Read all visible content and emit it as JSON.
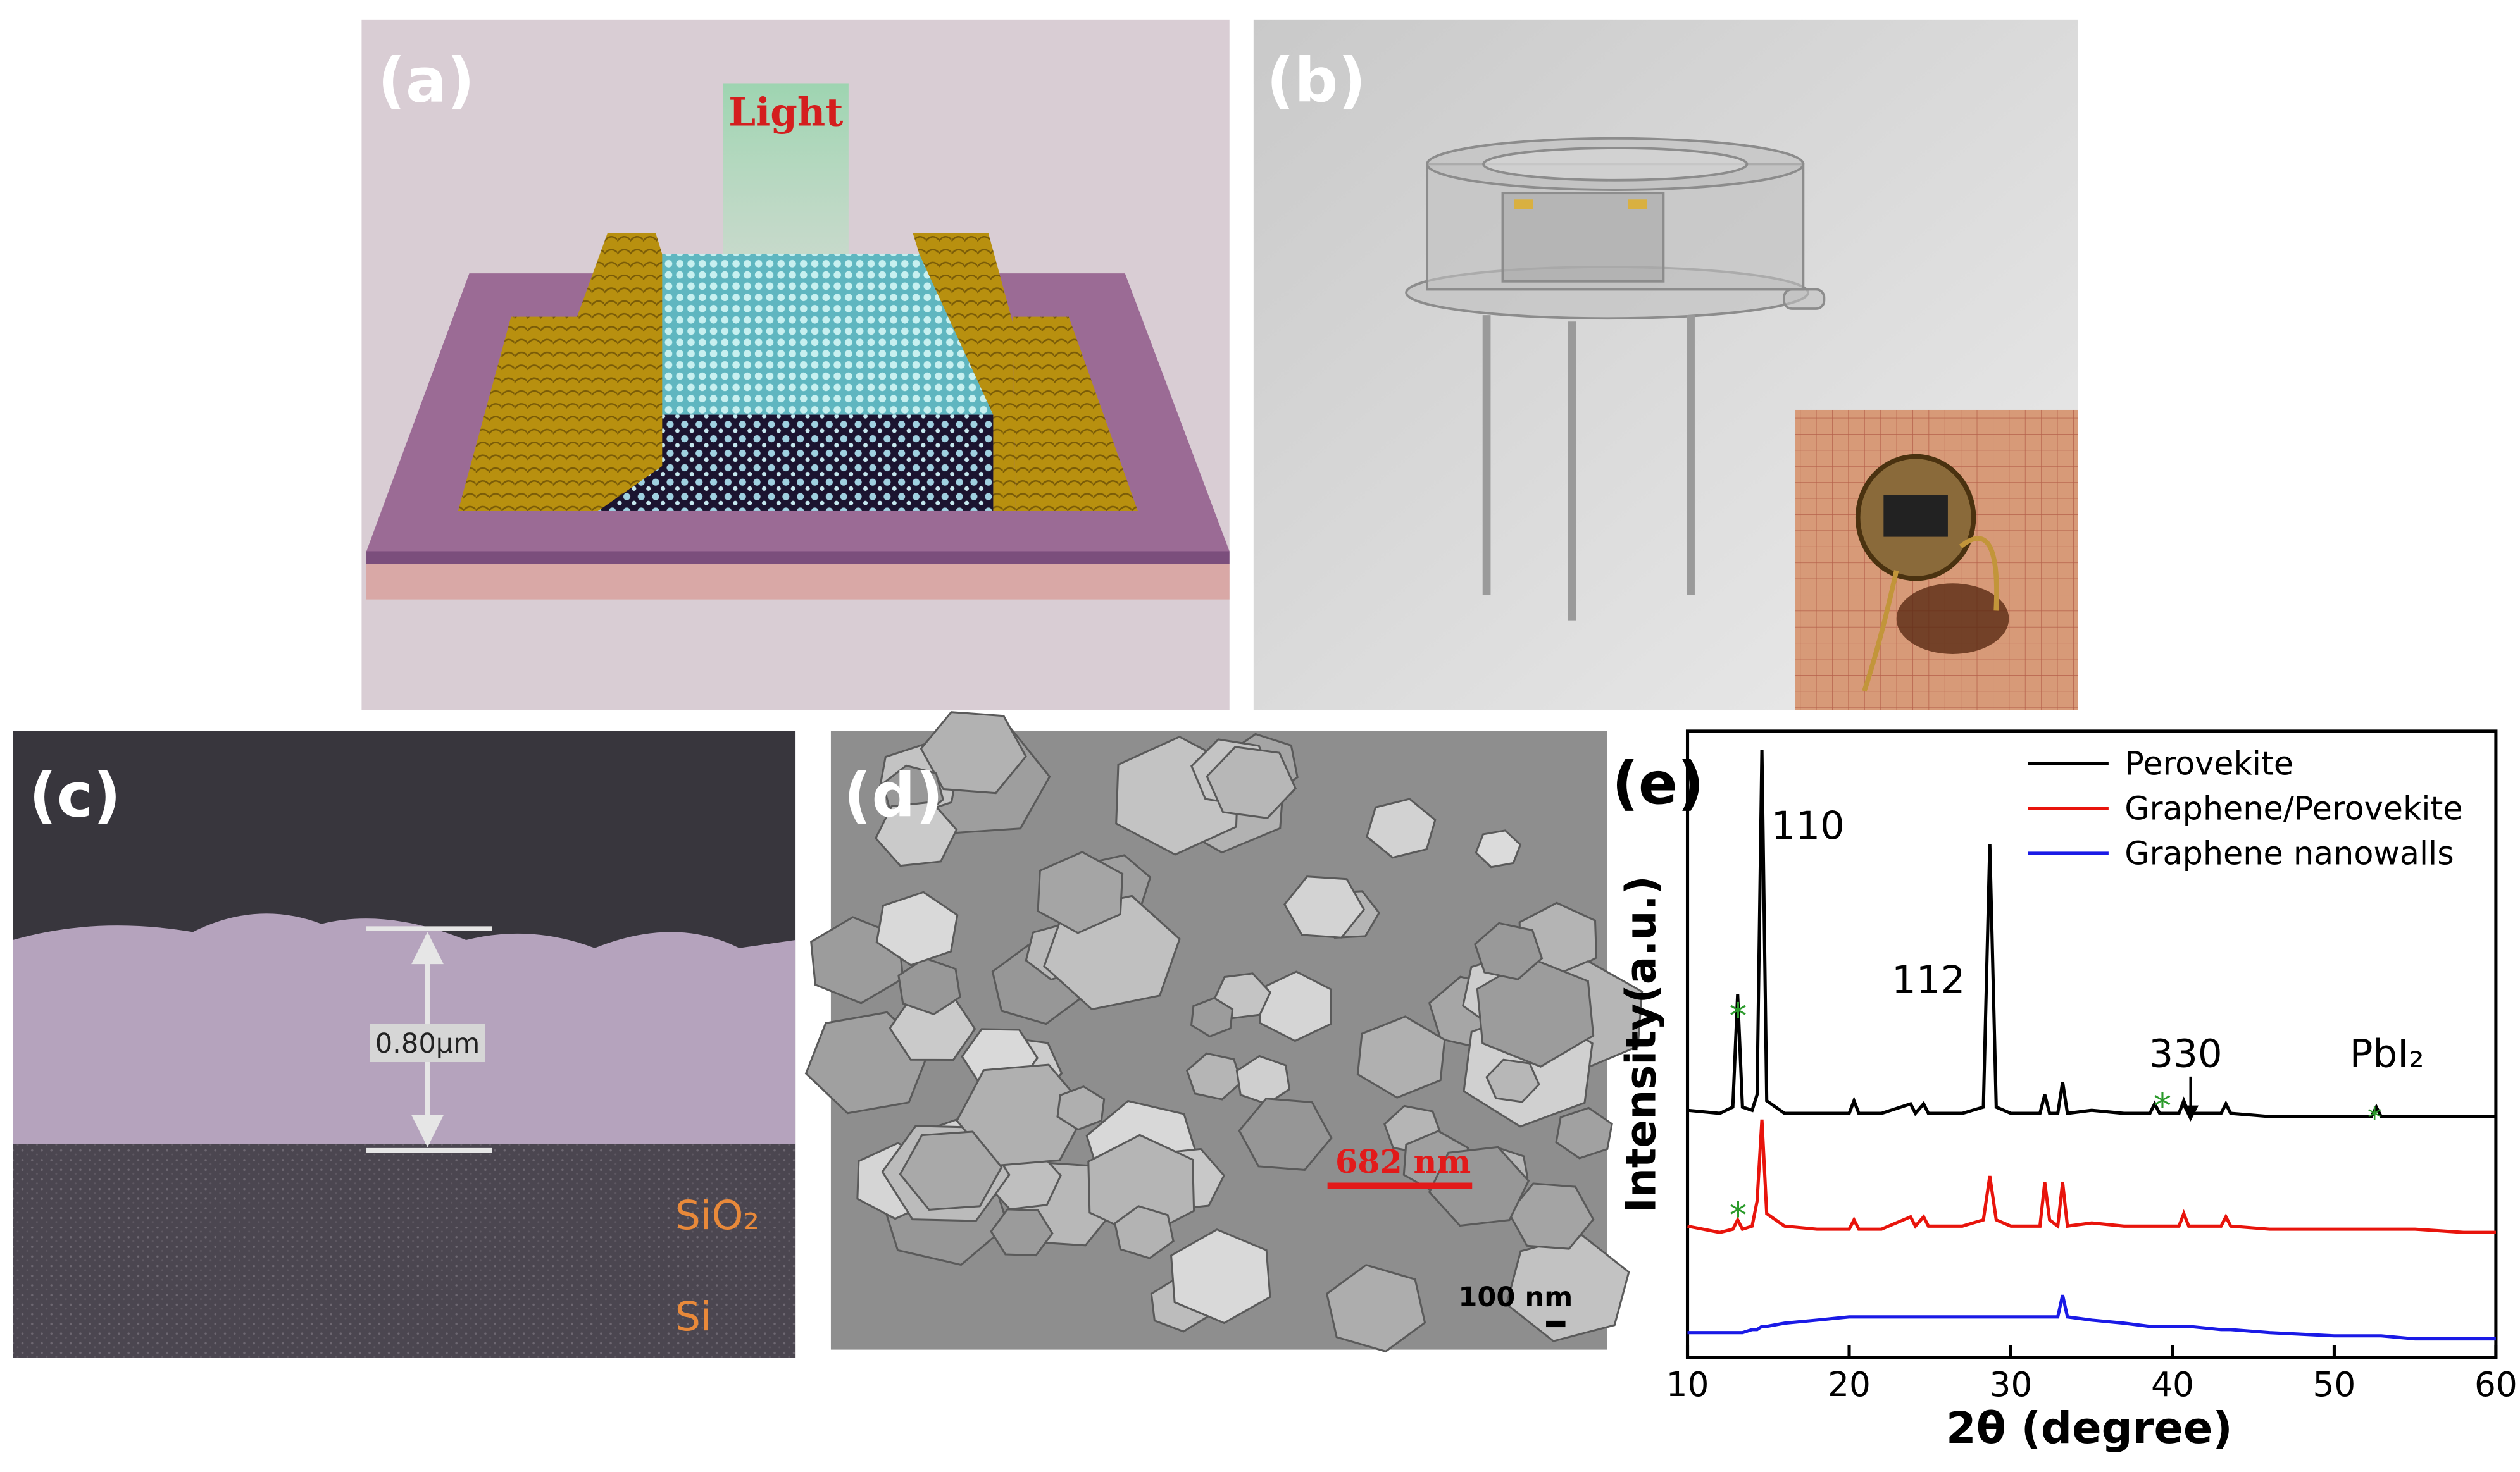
{
  "panels": {
    "a": {
      "label": "(a)",
      "light": "Light"
    },
    "b": {
      "label": "(b)"
    },
    "c": {
      "label": "(c)",
      "thickness": "0.80μm",
      "layer_1": "SiO₂",
      "layer_2": "Si"
    },
    "d": {
      "label": "(d)",
      "grain_size": "682 nm",
      "scale_bar": "100 nm"
    },
    "e": {
      "label": "(e)"
    }
  },
  "chart_data": {
    "type": "line",
    "x_label": "2θ (degree)",
    "y_label": "Intensity(a.u.)",
    "x": [
      10,
      12,
      12.8,
      13.1,
      13.4,
      14.0,
      14.3,
      14.6,
      14.9,
      16,
      18,
      20,
      20.3,
      20.6,
      22,
      23.8,
      24.1,
      24.6,
      24.9,
      25.2,
      27,
      28.3,
      28.7,
      29.1,
      30,
      31.8,
      32.1,
      32.4,
      32.9,
      33.2,
      33.5,
      35,
      37,
      38.6,
      38.9,
      39.2,
      40.4,
      40.7,
      41,
      43,
      43.3,
      43.6,
      46,
      50,
      52.3,
      52.6,
      52.9,
      55,
      58,
      60
    ],
    "series": [
      {
        "name": "Perovekite",
        "color": "#000000",
        "values": [
          39.5,
          39,
          40,
          58,
          40,
          39.5,
          42,
          97,
          41,
          39,
          39,
          39,
          41,
          39,
          39,
          40.5,
          39,
          40.5,
          39,
          39,
          39,
          40,
          82,
          40,
          39,
          39,
          42,
          39,
          39,
          44,
          39,
          39.5,
          39,
          39,
          40.5,
          39,
          39,
          41,
          39,
          39,
          40.5,
          39,
          38.5,
          38.5,
          38.5,
          40,
          38.5,
          38.5,
          38.5,
          38.5
        ]
      },
      {
        "name": "Graphene/Perovekite",
        "color": "#e8140c",
        "values": [
          21,
          20,
          20.5,
          22,
          20.5,
          21,
          25,
          38,
          23,
          21,
          20.5,
          20.5,
          22,
          20.5,
          20.5,
          22.5,
          21,
          22.5,
          21,
          21,
          21,
          22,
          29,
          22,
          21,
          21,
          28,
          22,
          21,
          28,
          21,
          21.5,
          21,
          21,
          21,
          21,
          21,
          23,
          21,
          21,
          22.5,
          21,
          20.5,
          20.5,
          20.5,
          20.5,
          20.5,
          20.5,
          20,
          20
        ]
      },
      {
        "name": "Graphene nanowalls",
        "color": "#1a1ae6",
        "values": [
          4,
          4,
          4,
          4,
          4,
          4.5,
          4.5,
          5,
          5,
          5.5,
          6,
          6.5,
          6.5,
          6.5,
          6.5,
          6.5,
          6.5,
          6.5,
          6.5,
          6.5,
          6.5,
          6.5,
          6.5,
          6.5,
          6.5,
          6.5,
          6.5,
          6.5,
          6.5,
          10,
          6.5,
          6,
          5.5,
          5,
          5,
          5,
          5,
          5,
          5,
          4.5,
          4.5,
          4.5,
          4,
          3.5,
          3.5,
          3.5,
          3.5,
          3,
          3,
          3
        ]
      }
    ],
    "xlim": [
      10,
      60
    ],
    "xticks": [
      10,
      20,
      30,
      40,
      50,
      60
    ],
    "ylim": [
      0,
      100
    ],
    "annotations": [
      "110",
      "112",
      "330",
      "PbI₂",
      "*",
      "*",
      "*",
      "*"
    ],
    "legend": "upper right"
  }
}
